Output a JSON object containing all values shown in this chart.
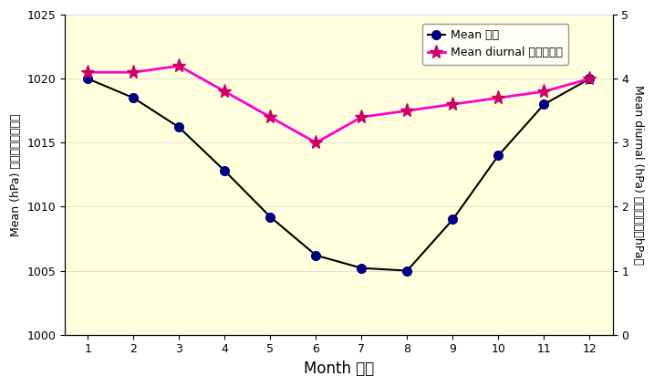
{
  "months": [
    1,
    2,
    3,
    4,
    5,
    6,
    7,
    8,
    9,
    10,
    11,
    12
  ],
  "mean_pressure": [
    1020.0,
    1018.5,
    1016.2,
    1012.8,
    1009.2,
    1006.2,
    1005.2,
    1005.0,
    1009.0,
    1014.0,
    1018.0,
    1020.0
  ],
  "mean_diurnal": [
    4.1,
    4.1,
    4.2,
    3.8,
    3.4,
    3.0,
    3.4,
    3.5,
    3.6,
    3.7,
    3.8,
    4.0
  ],
  "left_ylabel": "Mean (hPa) 平均（百帕斯卡）",
  "right_ylabel": "Mean diurnal (hPa) 平均日較差（hPa）",
  "xlabel": "Month 月份",
  "legend_mean": "Mean 平均",
  "legend_diurnal": "Mean diurnal 平均日較差",
  "left_ylim": [
    1000,
    1025
  ],
  "right_ylim": [
    0,
    5
  ],
  "left_yticks": [
    1000,
    1005,
    1010,
    1015,
    1020,
    1025
  ],
  "right_yticks": [
    0,
    1,
    2,
    3,
    4,
    5
  ],
  "background_color": "#FFFFDD",
  "mean_line_color": "#000000",
  "mean_marker_color": "#000080",
  "diurnal_line_color": "#FF00CC",
  "diurnal_marker_color": "#CC0066",
  "xlabel_fontsize": 12,
  "ylabel_fontsize": 9,
  "tick_fontsize": 9,
  "legend_fontsize": 9
}
